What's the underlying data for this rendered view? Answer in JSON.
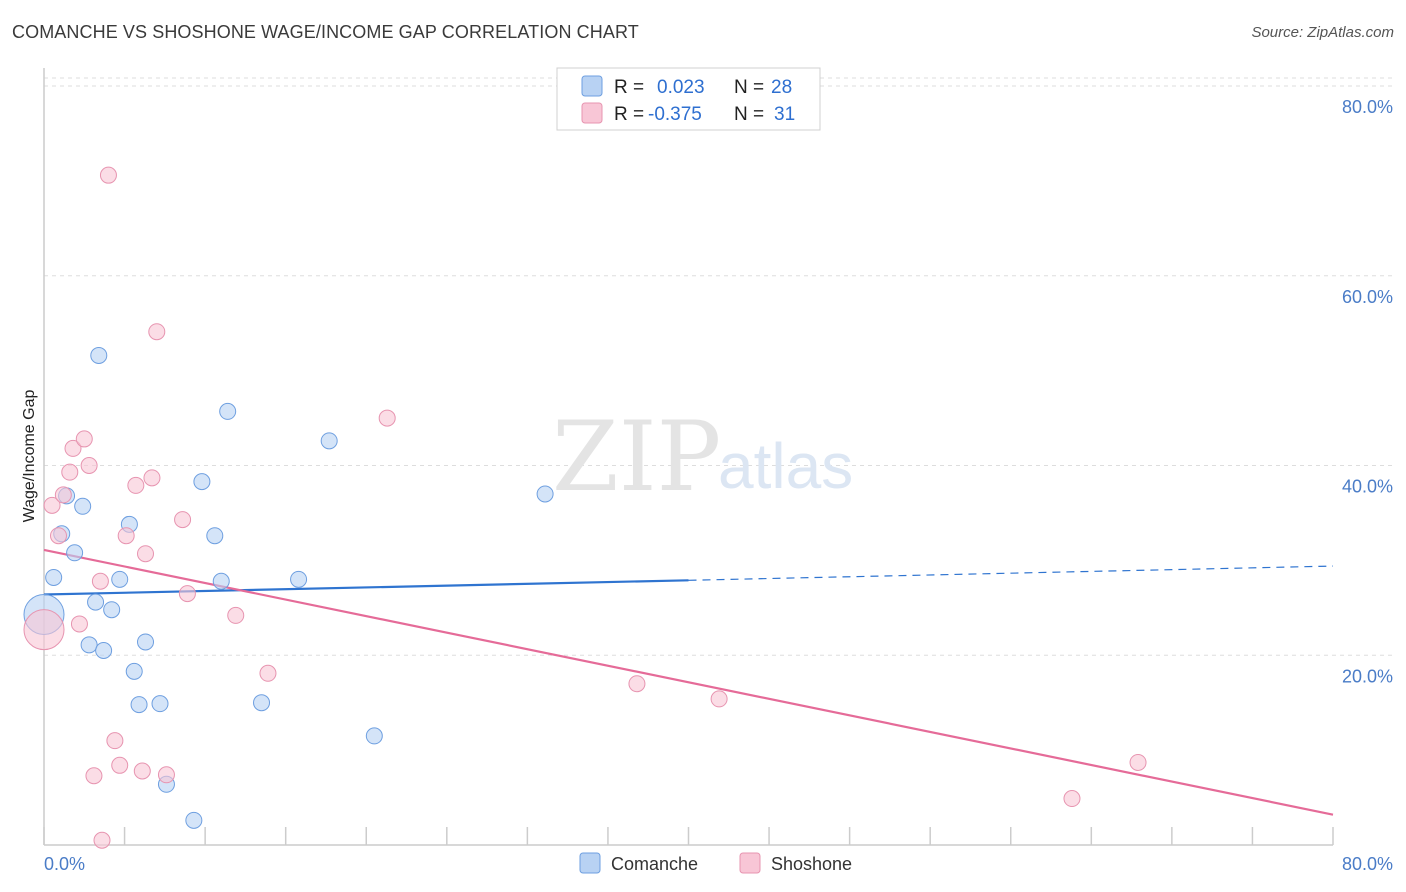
{
  "title": "COMANCHE VS SHOSHONE WAGE/INCOME GAP CORRELATION CHART",
  "source": "Source: ZipAtlas.com",
  "watermark": {
    "zip": "ZIP",
    "atlas": "atlas"
  },
  "stats": [
    {
      "r_label": "R =",
      "r": "0.023",
      "n_label": "N =",
      "n": "28"
    },
    {
      "r_label": "R =",
      "r": "-0.375",
      "n_label": "N =",
      "n": "31"
    }
  ],
  "colors": {
    "comanche_fill": "#b8d2f3",
    "comanche_stroke": "#6e9fe0",
    "comanche_line": "#2f74d0",
    "shoshone_fill": "#f8c6d6",
    "shoshone_stroke": "#e794b0",
    "shoshone_line": "#e56b98",
    "tick_text": "#4a7cc7",
    "grid": "#dddddd"
  },
  "chart_data": {
    "type": "scatter",
    "title": "COMANCHE VS SHOSHONE WAGE/INCOME GAP CORRELATION CHART",
    "xlabel": "",
    "ylabel": "Wage/Income Gap",
    "xlim": [
      0,
      80
    ],
    "ylim": [
      0,
      80
    ],
    "x_ticks": [
      {
        "value": 0,
        "label": "0.0%"
      },
      {
        "value": 80,
        "label": "80.0%"
      }
    ],
    "y_ticks": [
      {
        "value": 20,
        "label": "20.0%"
      },
      {
        "value": 40,
        "label": "40.0%"
      },
      {
        "value": 60,
        "label": "60.0%"
      },
      {
        "value": 80,
        "label": "80.0%"
      }
    ],
    "grid": "horizontal dashed",
    "legend": "bottom-center",
    "series": [
      {
        "name": "Comanche",
        "r": 0.023,
        "n": 28,
        "trend": {
          "x0": 0,
          "y0": 26.4,
          "x1": 40,
          "y1": 27.9,
          "dash_x1": 80,
          "dash_y1": 29.4
        },
        "points": [
          {
            "x": 0.0,
            "y": 24.3,
            "big": true
          },
          {
            "x": 0.6,
            "y": 28.2
          },
          {
            "x": 1.1,
            "y": 32.8
          },
          {
            "x": 1.4,
            "y": 36.8
          },
          {
            "x": 1.9,
            "y": 30.8
          },
          {
            "x": 2.4,
            "y": 35.7
          },
          {
            "x": 2.8,
            "y": 21.1
          },
          {
            "x": 3.2,
            "y": 25.6
          },
          {
            "x": 3.4,
            "y": 51.6
          },
          {
            "x": 3.7,
            "y": 20.5
          },
          {
            "x": 4.2,
            "y": 24.8
          },
          {
            "x": 4.7,
            "y": 28.0
          },
          {
            "x": 5.3,
            "y": 33.8
          },
          {
            "x": 5.6,
            "y": 18.3
          },
          {
            "x": 5.9,
            "y": 14.8
          },
          {
            "x": 6.3,
            "y": 21.4
          },
          {
            "x": 7.2,
            "y": 14.9
          },
          {
            "x": 7.6,
            "y": 6.4
          },
          {
            "x": 9.3,
            "y": 2.6
          },
          {
            "x": 9.8,
            "y": 38.3
          },
          {
            "x": 10.6,
            "y": 32.6
          },
          {
            "x": 11.0,
            "y": 27.8
          },
          {
            "x": 11.4,
            "y": 45.7
          },
          {
            "x": 13.5,
            "y": 15.0
          },
          {
            "x": 15.8,
            "y": 28.0
          },
          {
            "x": 17.7,
            "y": 42.6
          },
          {
            "x": 20.5,
            "y": 11.5
          },
          {
            "x": 31.1,
            "y": 37.0
          }
        ]
      },
      {
        "name": "Shoshone",
        "r": -0.375,
        "n": 31,
        "trend": {
          "x0": 0,
          "y0": 31.1,
          "x1": 80,
          "y1": 3.2
        },
        "points": [
          {
            "x": 0.0,
            "y": 22.7,
            "big": true
          },
          {
            "x": 0.5,
            "y": 35.8
          },
          {
            "x": 0.9,
            "y": 32.6
          },
          {
            "x": 1.2,
            "y": 36.9
          },
          {
            "x": 1.6,
            "y": 39.3
          },
          {
            "x": 1.8,
            "y": 41.8
          },
          {
            "x": 2.2,
            "y": 23.3
          },
          {
            "x": 2.5,
            "y": 42.8
          },
          {
            "x": 2.8,
            "y": 40.0
          },
          {
            "x": 3.1,
            "y": 7.3
          },
          {
            "x": 3.5,
            "y": 27.8
          },
          {
            "x": 3.6,
            "y": 0.5
          },
          {
            "x": 4.4,
            "y": 11.0
          },
          {
            "x": 4.7,
            "y": 8.4
          },
          {
            "x": 5.1,
            "y": 32.6
          },
          {
            "x": 5.7,
            "y": 37.9
          },
          {
            "x": 6.1,
            "y": 7.8
          },
          {
            "x": 6.3,
            "y": 30.7
          },
          {
            "x": 6.7,
            "y": 38.7
          },
          {
            "x": 7.0,
            "y": 54.1
          },
          {
            "x": 7.6,
            "y": 7.4
          },
          {
            "x": 8.6,
            "y": 34.3
          },
          {
            "x": 8.9,
            "y": 26.5
          },
          {
            "x": 11.9,
            "y": 24.2
          },
          {
            "x": 13.9,
            "y": 18.1
          },
          {
            "x": 4.0,
            "y": 70.6
          },
          {
            "x": 21.3,
            "y": 45.0
          },
          {
            "x": 36.8,
            "y": 17.0
          },
          {
            "x": 41.9,
            "y": 15.4
          },
          {
            "x": 63.8,
            "y": 4.9
          },
          {
            "x": 67.9,
            "y": 8.7
          }
        ]
      }
    ]
  }
}
